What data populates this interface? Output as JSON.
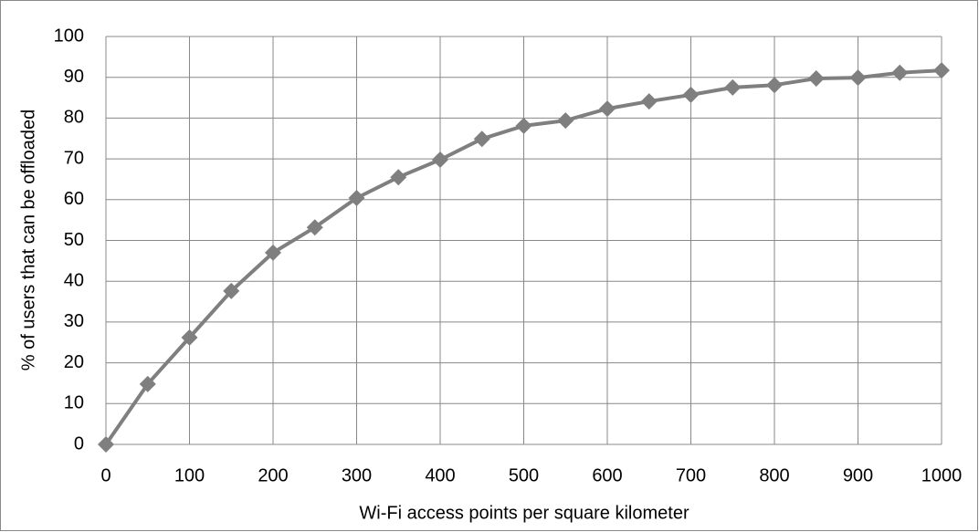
{
  "chart_data": {
    "type": "line",
    "x_label": "Wi-Fi access points per square kilometer",
    "y_label": "% of users that can be offloaded",
    "x": [
      0,
      50,
      100,
      150,
      200,
      250,
      300,
      350,
      400,
      450,
      500,
      550,
      600,
      650,
      700,
      750,
      800,
      850,
      900,
      950,
      1000
    ],
    "series": [
      {
        "color": "#7f7f7f",
        "values": [
          0,
          14.8,
          26.2,
          37.6,
          47,
          53.2,
          60.4,
          65.5,
          69.8,
          74.9,
          78.1,
          79.4,
          82.3,
          84.1,
          85.7,
          87.5,
          88.1,
          89.7,
          89.9,
          91.1,
          91.7
        ]
      }
    ],
    "xlim": [
      0,
      1000
    ],
    "xticks": [
      0,
      100,
      200,
      300,
      400,
      500,
      600,
      700,
      800,
      900,
      1000
    ],
    "ylim": [
      0,
      100
    ],
    "yticks": [
      0,
      10,
      20,
      30,
      40,
      50,
      60,
      70,
      80,
      90,
      100
    ],
    "grid": true
  }
}
